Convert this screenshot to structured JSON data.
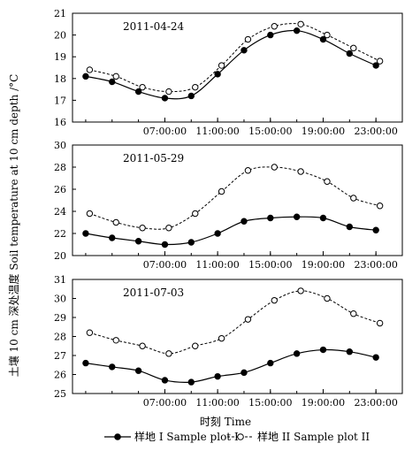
{
  "chart_data": {
    "type": "line",
    "ylabel": "土壤 10 cm 深处温度 Soil temperature at 10 cm depth /°C",
    "xlabel": "时刻 Time",
    "x_tick_labels": [
      "07:00:00",
      "11:00:00",
      "15:00:00",
      "19:00:00",
      "23:00:00"
    ],
    "legend": {
      "placement": "bottom",
      "entries": [
        "样地 I Sample plot I",
        "样地 II Sample plot II"
      ]
    },
    "grid": false,
    "panels": [
      {
        "title": "2011-04-24",
        "ylim": [
          16,
          21
        ],
        "yticks": [
          16,
          17,
          18,
          19,
          20,
          21
        ],
        "series": [
          {
            "name": "样地 I Sample plot I",
            "marker": "filled-circle",
            "line": "solid",
            "x": [
              1,
              3,
              5,
              7,
              9,
              11,
              13,
              15,
              17,
              19,
              21,
              23
            ],
            "values": [
              18.1,
              17.85,
              17.4,
              17.1,
              17.2,
              18.2,
              19.3,
              20.0,
              20.2,
              19.8,
              19.15,
              18.6
            ]
          },
          {
            "name": "样地 II Sample plot II",
            "marker": "open-circle",
            "line": "dashed",
            "x": [
              1.3,
              3.3,
              5.3,
              7.3,
              9.3,
              11.3,
              13.3,
              15.3,
              17.3,
              19.3,
              21.3,
              23.3
            ],
            "values": [
              18.4,
              18.1,
              17.6,
              17.4,
              17.6,
              18.6,
              19.8,
              20.4,
              20.5,
              20.0,
              19.4,
              18.8
            ]
          }
        ]
      },
      {
        "title": "2011-05-29",
        "ylim": [
          20,
          30
        ],
        "yticks": [
          20,
          22,
          24,
          26,
          28,
          30
        ],
        "series": [
          {
            "name": "样地 I Sample plot I",
            "marker": "filled-circle",
            "line": "solid",
            "x": [
              1,
              3,
              5,
              7,
              9,
              11,
              13,
              15,
              17,
              19,
              21,
              23
            ],
            "values": [
              22.0,
              21.6,
              21.3,
              21.0,
              21.2,
              22.0,
              23.1,
              23.4,
              23.5,
              23.4,
              22.6,
              22.3
            ]
          },
          {
            "name": "样地 II Sample plot II",
            "marker": "open-circle",
            "line": "dashed",
            "x": [
              1.3,
              3.3,
              5.3,
              7.3,
              9.3,
              11.3,
              13.3,
              15.3,
              17.3,
              19.3,
              21.3,
              23.3
            ],
            "values": [
              23.8,
              23.0,
              22.5,
              22.5,
              23.8,
              25.8,
              27.7,
              28.0,
              27.6,
              26.7,
              25.2,
              24.5
            ]
          }
        ]
      },
      {
        "title": "2011-07-03",
        "ylim": [
          25,
          31
        ],
        "yticks": [
          25,
          26,
          27,
          28,
          29,
          30,
          31
        ],
        "series": [
          {
            "name": "样地 I Sample plot I",
            "marker": "filled-circle",
            "line": "solid",
            "x": [
              1,
              3,
              5,
              7,
              9,
              11,
              13,
              15,
              17,
              19,
              21,
              23
            ],
            "values": [
              26.6,
              26.4,
              26.2,
              25.7,
              25.6,
              25.9,
              26.1,
              26.6,
              27.1,
              27.3,
              27.2,
              26.9
            ]
          },
          {
            "name": "样地 II Sample plot II",
            "marker": "open-circle",
            "line": "dashed",
            "x": [
              1.3,
              3.3,
              5.3,
              7.3,
              9.3,
              11.3,
              13.3,
              15.3,
              17.3,
              19.3,
              21.3,
              23.3
            ],
            "values": [
              28.2,
              27.8,
              27.5,
              27.1,
              27.5,
              27.9,
              28.9,
              29.9,
              30.4,
              30.0,
              29.2,
              28.7
            ]
          }
        ]
      }
    ]
  }
}
